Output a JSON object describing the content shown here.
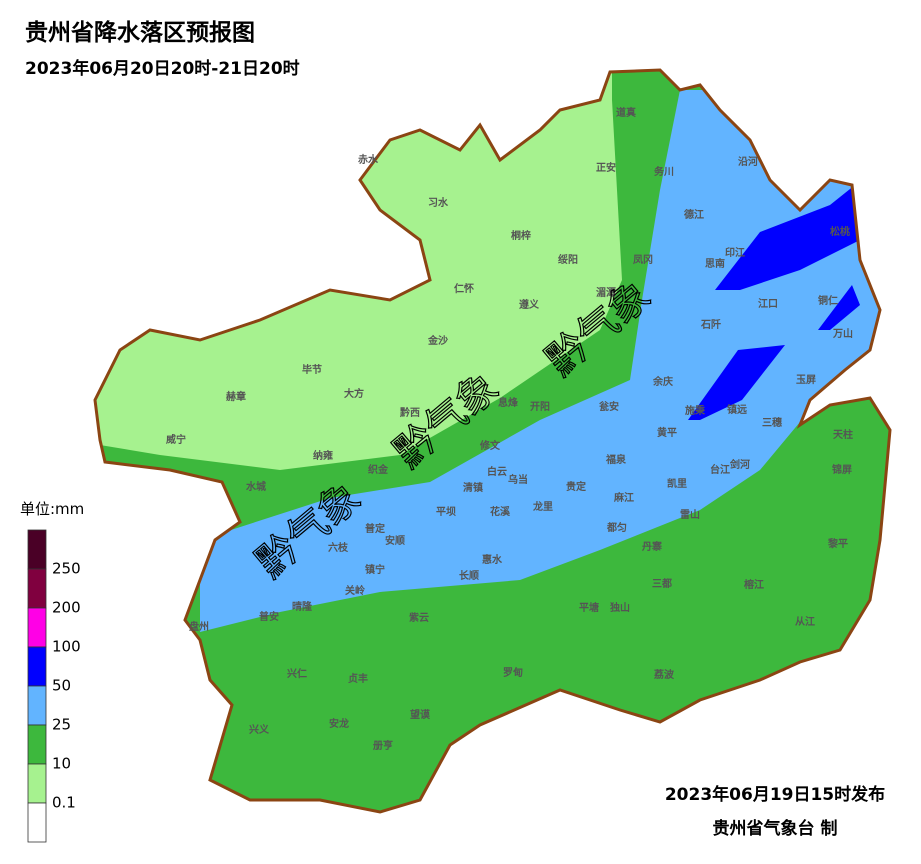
{
  "header": {
    "title": "贵州省降水落区预报图",
    "subtitle": "2023年06月20日20时-21日20时"
  },
  "legend": {
    "unit": "单位:mm",
    "labels": [
      "250",
      "200",
      "100",
      "50",
      "25",
      "10",
      "0.1"
    ],
    "colors": [
      "#4a0026",
      "#80003f",
      "#ff00e6",
      "#0000ff",
      "#62b4ff",
      "#3db83d",
      "#a6f28f",
      "#ffffff"
    ]
  },
  "watermarks": [
    "黔气象",
    "黔气象",
    "黔气象"
  ],
  "counties": [
    "赤水",
    "习水",
    "正安",
    "道真",
    "务川",
    "沿河",
    "桐梓",
    "绥阳",
    "凤冈",
    "德江",
    "印江",
    "思南",
    "松桃",
    "仁怀",
    "湄潭",
    "遵义",
    "江口",
    "铜仁",
    "石阡",
    "万山",
    "金沙",
    "毕节",
    "大方",
    "余庆",
    "玉屏",
    "赫章",
    "黔西",
    "息烽",
    "开阳",
    "瓮安",
    "施秉",
    "镇远",
    "三穗",
    "天柱",
    "威宁",
    "纳雍",
    "修文",
    "黄平",
    "织金",
    "白云",
    "清镇",
    "乌当",
    "福泉",
    "台江",
    "剑河",
    "锦屏",
    "水城",
    "贵定",
    "凯里",
    "麻江",
    "龙里",
    "平坝",
    "花溪",
    "普定",
    "安顺",
    "雷山",
    "都匀",
    "六枝",
    "黎平",
    "惠水",
    "丹寨",
    "镇宁",
    "长顺",
    "关岭",
    "三都",
    "榕江",
    "盘州",
    "普安",
    "晴隆",
    "紫云",
    "平塘",
    "独山",
    "从江",
    "兴仁",
    "贞丰",
    "罗甸",
    "荔波",
    "望谟",
    "兴义",
    "安龙",
    "册亨"
  ],
  "footer": {
    "issued": "2023年06月19日15时发布",
    "producer": "贵州省气象台 制"
  }
}
